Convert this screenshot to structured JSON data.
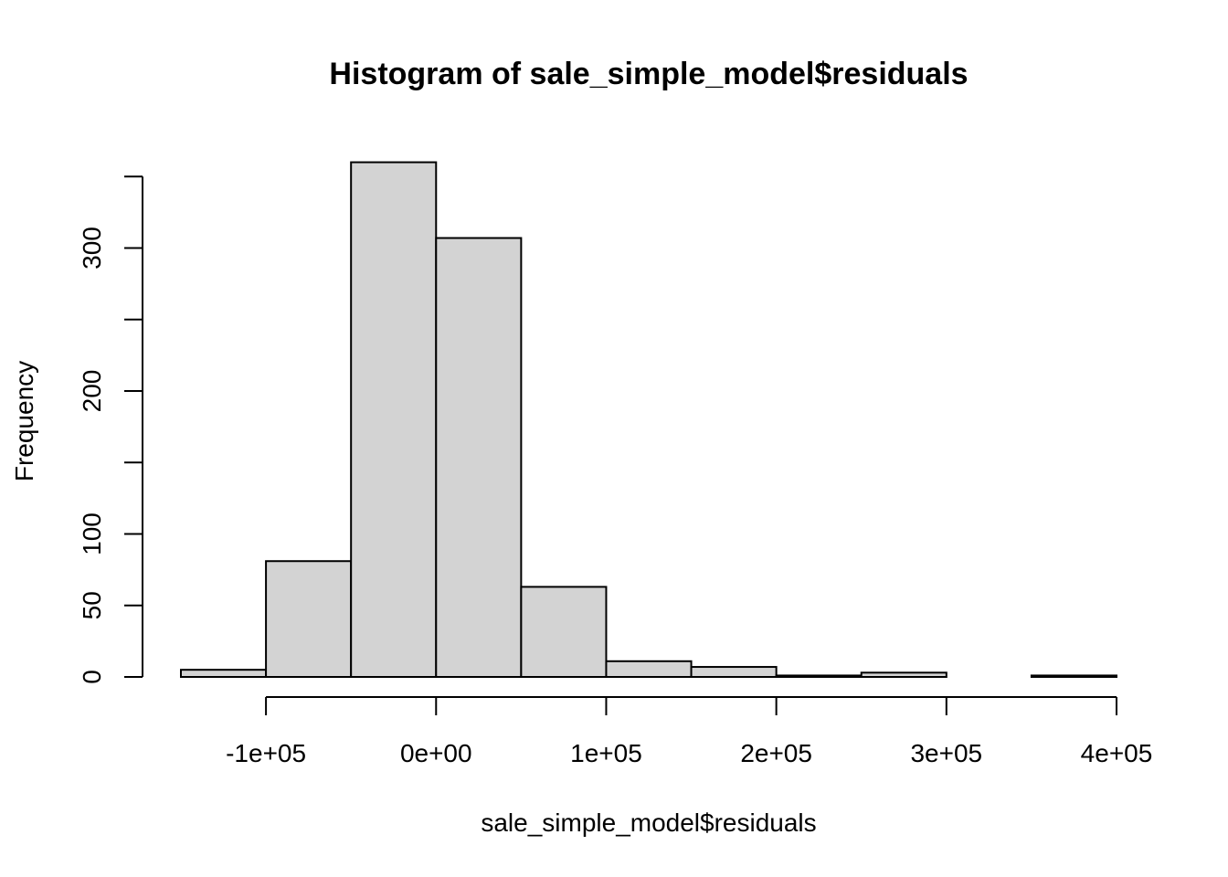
{
  "chart_data": {
    "type": "bar",
    "title": "Histogram of sale_simple_model$residuals",
    "xlabel": "sale_simple_model$residuals",
    "ylabel": "Frequency",
    "bins": [
      {
        "start": -150000,
        "end": -100000,
        "count": 5
      },
      {
        "start": -100000,
        "end": -50000,
        "count": 81
      },
      {
        "start": -50000,
        "end": 0,
        "count": 360
      },
      {
        "start": 0,
        "end": 50000,
        "count": 307
      },
      {
        "start": 50000,
        "end": 100000,
        "count": 63
      },
      {
        "start": 100000,
        "end": 150000,
        "count": 11
      },
      {
        "start": 150000,
        "end": 200000,
        "count": 7
      },
      {
        "start": 200000,
        "end": 250000,
        "count": 1
      },
      {
        "start": 250000,
        "end": 300000,
        "count": 3
      },
      {
        "start": 300000,
        "end": 350000,
        "count": 0
      },
      {
        "start": 350000,
        "end": 400000,
        "count": 1
      }
    ],
    "xlim": [
      -150000,
      400000
    ],
    "ylim": [
      0,
      360
    ],
    "x_ticks": [
      {
        "value": -100000,
        "label": "-1e+05"
      },
      {
        "value": 0,
        "label": "0e+00"
      },
      {
        "value": 100000,
        "label": "1e+05"
      },
      {
        "value": 200000,
        "label": "2e+05"
      },
      {
        "value": 300000,
        "label": "3e+05"
      },
      {
        "value": 400000,
        "label": "4e+05"
      }
    ],
    "y_ticks": [
      {
        "value": 0,
        "label": "0"
      },
      {
        "value": 50,
        "label": "50"
      },
      {
        "value": 100,
        "label": "100"
      },
      {
        "value": 150,
        "label": ""
      },
      {
        "value": 200,
        "label": "200"
      },
      {
        "value": 250,
        "label": ""
      },
      {
        "value": 300,
        "label": "300"
      },
      {
        "value": 350,
        "label": ""
      }
    ],
    "bar_color": "#d3d3d3",
    "grid": false
  }
}
